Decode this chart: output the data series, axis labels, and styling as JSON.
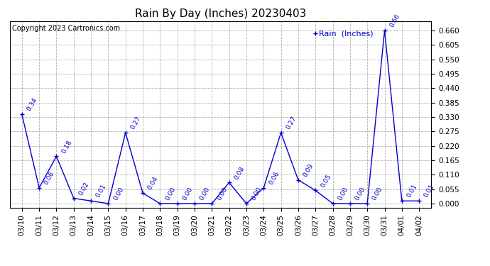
{
  "title": "Rain By Day (Inches) 20230403",
  "copyright_text": "Copyright 2023 Cartronics.com",
  "legend_label": "Rain  (Inches)",
  "dates": [
    "03/10",
    "03/11",
    "03/12",
    "03/13",
    "03/14",
    "03/15",
    "03/16",
    "03/17",
    "03/18",
    "03/19",
    "03/20",
    "03/21",
    "03/22",
    "03/23",
    "03/24",
    "03/25",
    "03/26",
    "03/27",
    "03/28",
    "03/29",
    "03/30",
    "03/31",
    "04/01",
    "04/02"
  ],
  "values": [
    0.34,
    0.06,
    0.18,
    0.02,
    0.01,
    0.0,
    0.27,
    0.04,
    0.0,
    0.0,
    0.0,
    0.0,
    0.08,
    0.0,
    0.06,
    0.27,
    0.09,
    0.05,
    0.0,
    0.0,
    0.0,
    0.66,
    0.01,
    0.01
  ],
  "line_color": "#0000cc",
  "marker_color": "#0000cc",
  "label_color": "#0000cc",
  "background_color": "#ffffff",
  "grid_color": "#aaaaaa",
  "yticks": [
    0.0,
    0.055,
    0.11,
    0.165,
    0.22,
    0.275,
    0.33,
    0.385,
    0.44,
    0.495,
    0.55,
    0.605,
    0.66
  ],
  "ylim": [
    -0.015,
    0.695
  ],
  "title_fontsize": 11,
  "label_fontsize": 6.5,
  "tick_fontsize": 7.5,
  "copyright_fontsize": 7,
  "legend_fontsize": 8
}
